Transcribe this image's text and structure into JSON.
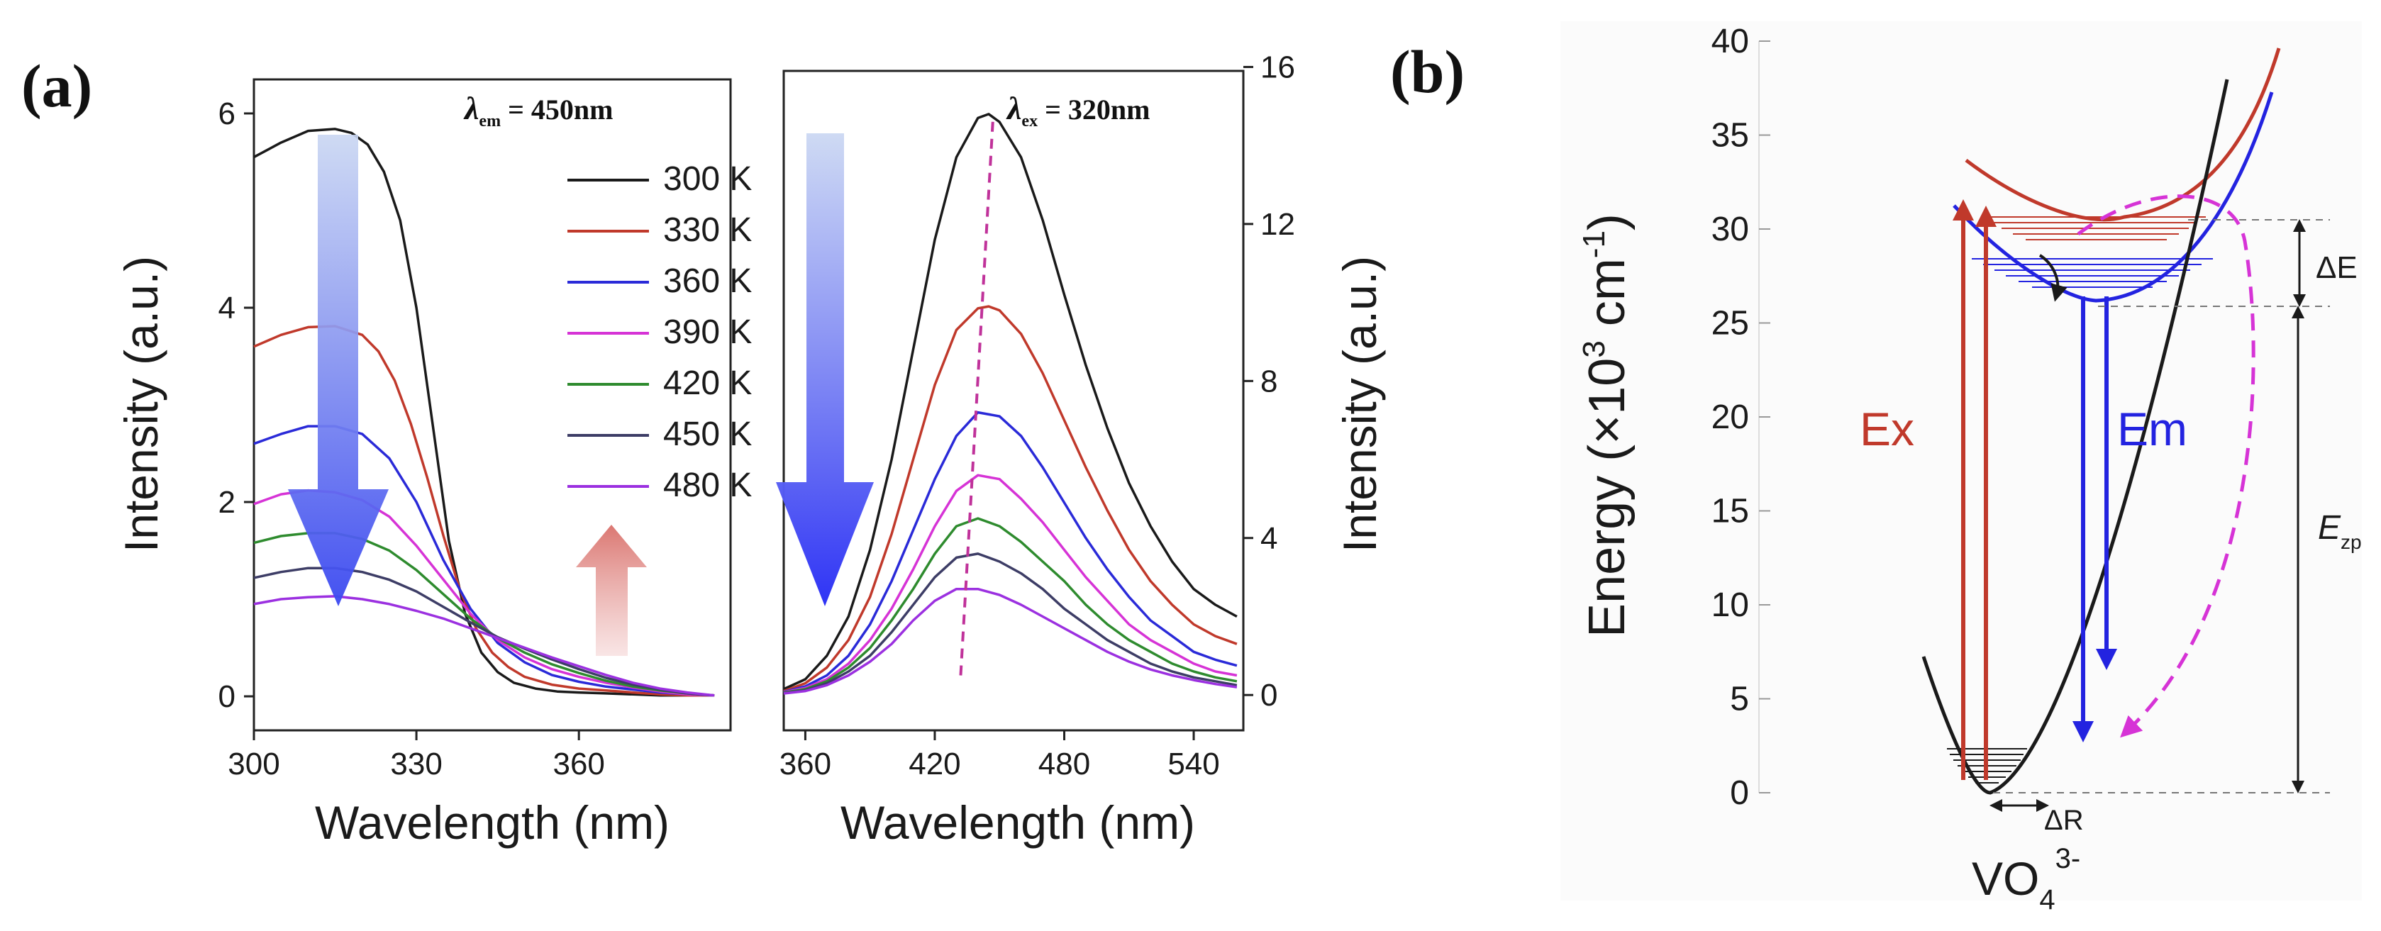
{
  "panel_a_label": "(a)",
  "panel_b_label": "(b)",
  "chart_data": [
    {
      "type": "line",
      "name": "excitation",
      "title": "",
      "annotation": {
        "symbol": "λ",
        "subscript": "em",
        "text": " = 450nm"
      },
      "xlabel": "Wavelength (nm)",
      "ylabel": "Intensity (a.u.)",
      "xlim": [
        300,
        388
      ],
      "ylim": [
        -0.35,
        6.35
      ],
      "xticks": [
        "300",
        "330",
        "360"
      ],
      "yticks": [
        "0",
        "2",
        "4",
        "6"
      ],
      "legend": {
        "placement": "top-right",
        "entries": [
          "300 K",
          "330 K",
          "360 K",
          "390 K",
          "420 K",
          "450 K",
          "480 K"
        ]
      },
      "series": [
        {
          "name": "300 K",
          "color": "#1a1a1a",
          "x": [
            300,
            305,
            310,
            315,
            318,
            321,
            324,
            327,
            330,
            333,
            336,
            339,
            342,
            345,
            348,
            352,
            356,
            360,
            365,
            370,
            375,
            380,
            385
          ],
          "y": [
            5.55,
            5.7,
            5.82,
            5.84,
            5.8,
            5.68,
            5.4,
            4.9,
            4.0,
            2.8,
            1.6,
            0.85,
            0.45,
            0.25,
            0.14,
            0.08,
            0.05,
            0.04,
            0.03,
            0.02,
            0.01,
            0.01,
            0.01
          ]
        },
        {
          "name": "330 K",
          "color": "#c0392b",
          "x": [
            300,
            305,
            310,
            315,
            320,
            323,
            326,
            329,
            332,
            335,
            338,
            341,
            344,
            347,
            350,
            355,
            360,
            365,
            370,
            375,
            380,
            385
          ],
          "y": [
            3.6,
            3.72,
            3.8,
            3.81,
            3.72,
            3.55,
            3.25,
            2.8,
            2.25,
            1.65,
            1.1,
            0.7,
            0.45,
            0.3,
            0.2,
            0.12,
            0.08,
            0.06,
            0.04,
            0.02,
            0.01,
            0.01
          ]
        },
        {
          "name": "360 K",
          "color": "#2a2ad8",
          "x": [
            300,
            305,
            310,
            315,
            320,
            325,
            330,
            335,
            340,
            345,
            350,
            355,
            360,
            365,
            370,
            375,
            380,
            385
          ],
          "y": [
            2.6,
            2.7,
            2.78,
            2.78,
            2.7,
            2.45,
            2.0,
            1.4,
            0.9,
            0.55,
            0.35,
            0.22,
            0.15,
            0.1,
            0.07,
            0.04,
            0.02,
            0.01
          ]
        },
        {
          "name": "390 K",
          "color": "#d633d6",
          "x": [
            300,
            305,
            310,
            315,
            320,
            325,
            330,
            335,
            340,
            345,
            350,
            355,
            360,
            365,
            370,
            375,
            380,
            385
          ],
          "y": [
            1.98,
            2.08,
            2.12,
            2.1,
            2.02,
            1.85,
            1.55,
            1.2,
            0.85,
            0.58,
            0.4,
            0.28,
            0.2,
            0.14,
            0.09,
            0.05,
            0.02,
            0.01
          ]
        },
        {
          "name": "420 K",
          "color": "#2e8b2e",
          "x": [
            300,
            305,
            310,
            315,
            320,
            325,
            330,
            335,
            340,
            345,
            350,
            355,
            360,
            365,
            370,
            375,
            380,
            385
          ],
          "y": [
            1.58,
            1.65,
            1.68,
            1.68,
            1.62,
            1.5,
            1.3,
            1.05,
            0.8,
            0.6,
            0.45,
            0.33,
            0.24,
            0.16,
            0.1,
            0.06,
            0.03,
            0.01
          ]
        },
        {
          "name": "450 K",
          "color": "#3d3d66",
          "x": [
            300,
            305,
            310,
            315,
            320,
            325,
            330,
            335,
            340,
            345,
            350,
            355,
            360,
            365,
            370,
            375,
            380,
            385
          ],
          "y": [
            1.22,
            1.28,
            1.32,
            1.32,
            1.28,
            1.2,
            1.08,
            0.92,
            0.76,
            0.61,
            0.49,
            0.38,
            0.28,
            0.19,
            0.12,
            0.07,
            0.03,
            0.01
          ]
        },
        {
          "name": "480 K",
          "color": "#9b30e0",
          "x": [
            300,
            305,
            310,
            315,
            320,
            325,
            330,
            335,
            340,
            345,
            350,
            355,
            360,
            365,
            370,
            375,
            380,
            385
          ],
          "y": [
            0.95,
            1.0,
            1.02,
            1.03,
            1.0,
            0.95,
            0.88,
            0.8,
            0.7,
            0.6,
            0.5,
            0.4,
            0.31,
            0.22,
            0.14,
            0.08,
            0.04,
            0.01
          ]
        }
      ]
    },
    {
      "type": "line",
      "name": "emission",
      "title": "",
      "annotation": {
        "symbol": "λ",
        "subscript": "ex",
        "text": " = 320nm"
      },
      "xlabel": "Wavelength (nm)",
      "ylabel": "Intensity (a.u.)",
      "xlim": [
        350,
        563
      ],
      "ylim": [
        -0.9,
        15.9
      ],
      "xticks": [
        "360",
        "420",
        "480",
        "540"
      ],
      "yticks": [
        "0",
        "4",
        "8",
        "12",
        "16"
      ],
      "series": [
        {
          "name": "300 K",
          "color": "#1a1a1a",
          "x": [
            350,
            360,
            370,
            380,
            390,
            400,
            410,
            420,
            430,
            440,
            445,
            450,
            460,
            470,
            480,
            490,
            500,
            510,
            520,
            530,
            540,
            550,
            560
          ],
          "y": [
            0.15,
            0.4,
            1.0,
            2.0,
            3.7,
            6.0,
            8.8,
            11.6,
            13.7,
            14.7,
            14.8,
            14.6,
            13.7,
            12.1,
            10.2,
            8.4,
            6.8,
            5.4,
            4.3,
            3.4,
            2.7,
            2.3,
            2.0
          ]
        },
        {
          "name": "330 K",
          "color": "#c0392b",
          "x": [
            350,
            360,
            370,
            380,
            390,
            400,
            410,
            420,
            430,
            440,
            445,
            450,
            460,
            470,
            480,
            490,
            500,
            510,
            520,
            530,
            540,
            550,
            560
          ],
          "y": [
            0.1,
            0.3,
            0.7,
            1.4,
            2.5,
            4.1,
            6.0,
            7.9,
            9.3,
            9.85,
            9.9,
            9.8,
            9.2,
            8.2,
            7.0,
            5.8,
            4.7,
            3.7,
            2.9,
            2.3,
            1.8,
            1.5,
            1.3
          ]
        },
        {
          "name": "360 K",
          "color": "#2a2ad8",
          "x": [
            350,
            360,
            370,
            380,
            390,
            400,
            410,
            420,
            430,
            440,
            450,
            460,
            470,
            480,
            490,
            500,
            510,
            520,
            530,
            540,
            550,
            560
          ],
          "y": [
            0.08,
            0.22,
            0.5,
            1.0,
            1.8,
            2.9,
            4.2,
            5.5,
            6.6,
            7.2,
            7.1,
            6.6,
            5.8,
            4.9,
            4.0,
            3.2,
            2.5,
            1.9,
            1.5,
            1.1,
            0.9,
            0.75
          ]
        },
        {
          "name": "390 K",
          "color": "#d633d6",
          "x": [
            350,
            360,
            370,
            380,
            390,
            400,
            410,
            420,
            430,
            440,
            450,
            460,
            470,
            480,
            490,
            500,
            510,
            520,
            530,
            540,
            550,
            560
          ],
          "y": [
            0.07,
            0.18,
            0.4,
            0.8,
            1.4,
            2.2,
            3.2,
            4.3,
            5.2,
            5.6,
            5.5,
            5.0,
            4.4,
            3.7,
            3.0,
            2.4,
            1.8,
            1.4,
            1.1,
            0.8,
            0.6,
            0.5
          ]
        },
        {
          "name": "420 K",
          "color": "#2e8b2e",
          "x": [
            350,
            360,
            370,
            380,
            390,
            400,
            410,
            420,
            430,
            440,
            450,
            460,
            470,
            480,
            490,
            500,
            510,
            520,
            530,
            540,
            550,
            560
          ],
          "y": [
            0.06,
            0.15,
            0.35,
            0.7,
            1.2,
            1.9,
            2.7,
            3.6,
            4.3,
            4.5,
            4.3,
            3.9,
            3.4,
            2.9,
            2.3,
            1.8,
            1.4,
            1.1,
            0.8,
            0.6,
            0.45,
            0.35
          ]
        },
        {
          "name": "450 K",
          "color": "#3d3d66",
          "x": [
            350,
            360,
            370,
            380,
            390,
            400,
            410,
            420,
            430,
            440,
            450,
            460,
            470,
            480,
            490,
            500,
            510,
            520,
            530,
            540,
            550,
            560
          ],
          "y": [
            0.05,
            0.12,
            0.3,
            0.6,
            1.0,
            1.6,
            2.3,
            3.0,
            3.5,
            3.6,
            3.4,
            3.1,
            2.7,
            2.2,
            1.8,
            1.4,
            1.1,
            0.8,
            0.6,
            0.45,
            0.35,
            0.25
          ]
        },
        {
          "name": "480 K",
          "color": "#9b30e0",
          "x": [
            350,
            360,
            370,
            380,
            390,
            400,
            410,
            420,
            430,
            440,
            450,
            460,
            470,
            480,
            490,
            500,
            510,
            520,
            530,
            540,
            550,
            560
          ],
          "y": [
            0.04,
            0.1,
            0.25,
            0.5,
            0.85,
            1.3,
            1.9,
            2.4,
            2.7,
            2.7,
            2.55,
            2.3,
            2.0,
            1.7,
            1.4,
            1.1,
            0.85,
            0.65,
            0.5,
            0.38,
            0.28,
            0.2
          ]
        }
      ],
      "peak_shift_line": {
        "x": [
          432,
          447
        ],
        "y": [
          0.5,
          14.7
        ]
      }
    },
    {
      "type": "diagram",
      "name": "configurational-coordinate",
      "ylabel": "Energy (×10",
      "ylabel_exp": "3",
      "ylabel_unit": " cm",
      "ylabel_unit_exp": "-1",
      "ylabel_close": ")",
      "ylim": [
        0,
        40
      ],
      "yticks": [
        "0",
        "5",
        "10",
        "15",
        "20",
        "25",
        "30",
        "35",
        "40"
      ],
      "labels": {
        "excitation": "Ex",
        "emission": "Em",
        "delta_e": "ΔE",
        "e_zp_main": "E",
        "e_zp_sub": "zp",
        "delta_r": "ΔR",
        "species_main": "VO",
        "species_sub": "4",
        "species_sup": "3-"
      },
      "levels": {
        "ground_min": 0,
        "excited_min": 26,
        "upper_min": 30.5
      },
      "colors": {
        "ground": "#1a1a1a",
        "excited_blue": "#2323e0",
        "excited_red": "#c0392b",
        "crossover": "#d633d6"
      }
    }
  ]
}
